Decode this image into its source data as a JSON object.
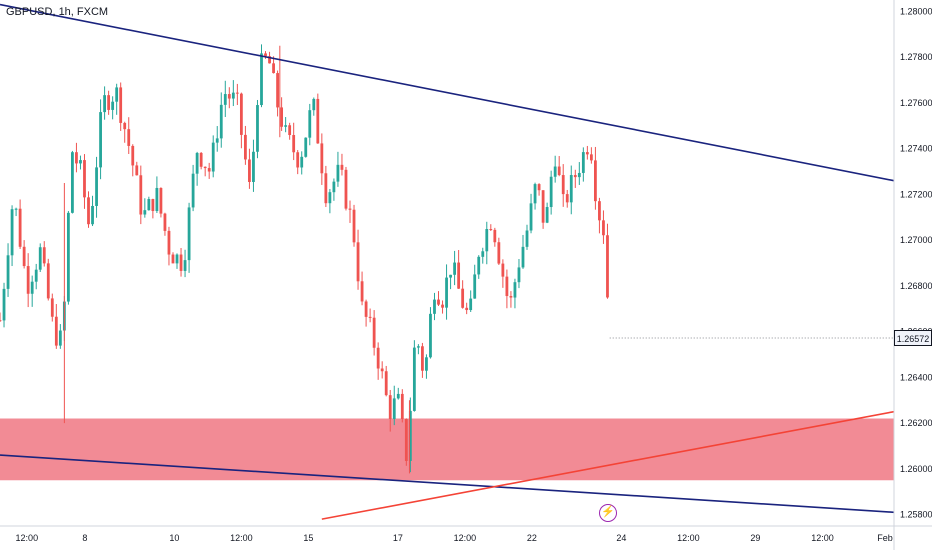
{
  "symbol": "GBPUSD, 1h, FXCM",
  "current_price": "1.26572",
  "chart_data": {
    "type": "candlestick",
    "ylim": [
      1.2575,
      1.2805
    ],
    "y_ticks": [
      "1.28000",
      "1.27800",
      "1.27600",
      "1.27400",
      "1.27200",
      "1.27000",
      "1.26800",
      "1.26600",
      "1.26400",
      "1.26200",
      "1.26000",
      "1.25800"
    ],
    "x_ticks": [
      "12:00",
      "8",
      "10",
      "12:00",
      "15",
      "17",
      "12:00",
      "22",
      "24",
      "12:00",
      "29",
      "12:00",
      "Feb"
    ],
    "colors": {
      "up": "#26a69a",
      "down": "#ef5350",
      "trendline": "#1a237e",
      "support_line": "#f44336",
      "zone": "#f28b95"
    },
    "support_zone": {
      "from": 1.2595,
      "to": 1.2622
    },
    "trendlines": [
      {
        "name": "upper",
        "points": [
          [
            0,
            1.2803
          ],
          [
            100,
            1.2726
          ]
        ]
      },
      {
        "name": "lower",
        "points": [
          [
            0,
            1.2606
          ],
          [
            100,
            1.2581
          ]
        ]
      },
      {
        "name": "rising",
        "points": [
          [
            36,
            1.2578
          ],
          [
            100,
            1.2625
          ]
        ]
      }
    ],
    "close_path": [
      [
        0,
        1.2665
      ],
      [
        1.5,
        1.272
      ],
      [
        3,
        1.268
      ],
      [
        4.5,
        1.2695
      ],
      [
        6,
        1.266
      ],
      [
        7,
        1.2655
      ],
      [
        8,
        1.274
      ],
      [
        9,
        1.273
      ],
      [
        10,
        1.2705
      ],
      [
        11.5,
        1.276
      ],
      [
        13,
        1.2765
      ],
      [
        14.5,
        1.274
      ],
      [
        16,
        1.271
      ],
      [
        17.5,
        1.272
      ],
      [
        19,
        1.2695
      ],
      [
        20.5,
        1.269
      ],
      [
        22,
        1.274
      ],
      [
        23.5,
        1.273
      ],
      [
        25,
        1.2765
      ],
      [
        26.5,
        1.276
      ],
      [
        28,
        1.272
      ],
      [
        29,
        1.2775
      ],
      [
        30,
        1.278
      ],
      [
        31,
        1.276
      ],
      [
        32,
        1.2745
      ],
      [
        33.5,
        1.2735
      ],
      [
        35,
        1.276
      ],
      [
        36.5,
        1.272
      ],
      [
        38,
        1.273
      ],
      [
        39.5,
        1.2705
      ],
      [
        40.5,
        1.267
      ],
      [
        41.5,
        1.266
      ],
      [
        42.5,
        1.2645
      ],
      [
        43.5,
        1.2625
      ],
      [
        44.5,
        1.263
      ],
      [
        45.5,
        1.2605
      ],
      [
        46.5,
        1.266
      ],
      [
        47.5,
        1.264
      ],
      [
        48.5,
        1.268
      ],
      [
        49.5,
        1.2675
      ],
      [
        50.5,
        1.269
      ],
      [
        51.5,
        1.2675
      ],
      [
        52.5,
        1.2665
      ],
      [
        53.5,
        1.2695
      ],
      [
        55,
        1.271
      ],
      [
        56,
        1.269
      ],
      [
        57,
        1.267
      ],
      [
        58,
        1.269
      ],
      [
        59,
        1.2705
      ],
      [
        60,
        1.2725
      ],
      [
        61,
        1.2705
      ],
      [
        62,
        1.274
      ],
      [
        63,
        1.2715
      ],
      [
        64.5,
        1.273
      ],
      [
        66,
        1.2745
      ],
      [
        66.8,
        1.2715
      ],
      [
        67.5,
        1.2705
      ],
      [
        68.2,
        1.266
      ]
    ]
  }
}
